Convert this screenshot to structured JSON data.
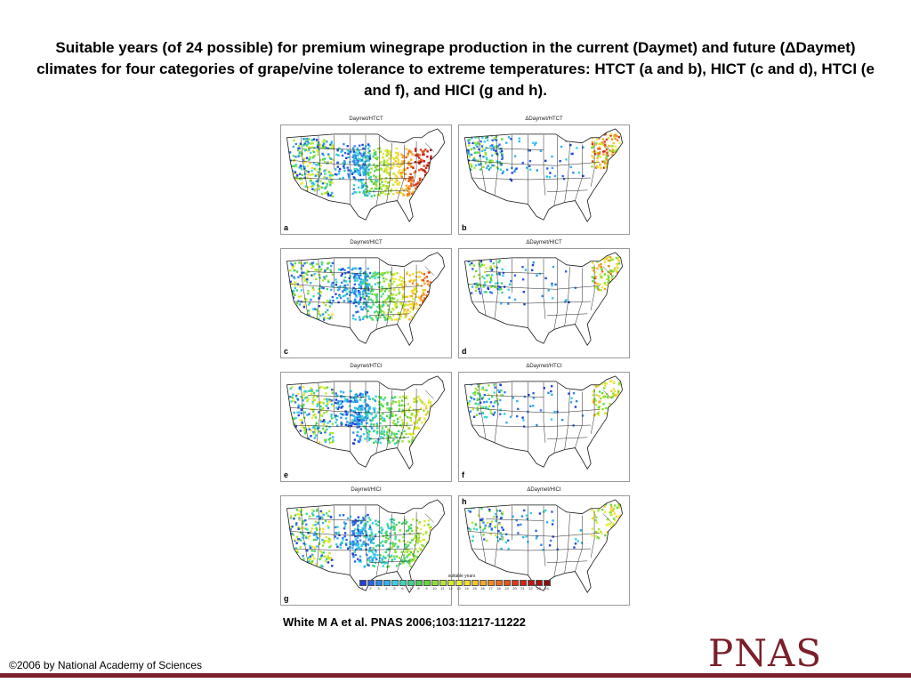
{
  "slide": {
    "title": "Suitable years (of 24 possible) for premium winegrape production in the current (Daymet) and future (ΔDaymet) climates for four categories of grape/vine tolerance to extreme temperatures: HTCT (a and b), HICT (c and d), HTCI (e and f), and HICI (g and h).",
    "citation": "White M A et al. PNAS 2006;103:11217-11222",
    "copyright": "©2006 by National Academy of Sciences",
    "logo_text": "PNAS",
    "brand_color": "#7b1f2a"
  },
  "panels": [
    {
      "letter": "a",
      "title": "Daymet/HTCT",
      "density": 0.9,
      "east_strength": 0.9,
      "future": false
    },
    {
      "letter": "b",
      "title": "ΔDaymet/HTCT",
      "density": 0.35,
      "east_strength": 0.8,
      "future": true
    },
    {
      "letter": "c",
      "title": "Daymet/HICT",
      "density": 0.8,
      "east_strength": 0.7,
      "future": false
    },
    {
      "letter": "d",
      "title": "ΔDaymet/HICT",
      "density": 0.25,
      "east_strength": 0.6,
      "future": true
    },
    {
      "letter": "e",
      "title": "Daymet/HTCI",
      "density": 0.75,
      "east_strength": 0.5,
      "future": false
    },
    {
      "letter": "f",
      "title": "ΔDaymet/HTCI",
      "density": 0.25,
      "east_strength": 0.45,
      "future": true
    },
    {
      "letter": "g",
      "title": "Daymet/HICI",
      "density": 0.7,
      "east_strength": 0.4,
      "future": false
    },
    {
      "letter": "h",
      "title": "ΔDaymet/HICI",
      "density": 0.22,
      "east_strength": 0.4,
      "future": true
    }
  ],
  "legend": {
    "title": "suitable years",
    "values": [
      "1",
      "2",
      "3",
      "4",
      "5",
      "6",
      "7",
      "8",
      "9",
      "10",
      "11",
      "12",
      "13",
      "14",
      "15",
      "16",
      "17",
      "18",
      "19",
      "20",
      "21",
      "22",
      "23",
      "24"
    ],
    "colors": [
      "#1f3fd6",
      "#2a62e6",
      "#2f86ee",
      "#2fb0f2",
      "#33d0e8",
      "#38d9b8",
      "#3fd48a",
      "#4ccf55",
      "#62d83a",
      "#8de033",
      "#b2e633",
      "#d2ea33",
      "#ecec33",
      "#f5dc2e",
      "#f6c22a",
      "#f6a526",
      "#f38822",
      "#ee6b1e",
      "#e6501b",
      "#dc3618",
      "#cf2317",
      "#bf1616",
      "#a81212",
      "#8a0f0f"
    ]
  }
}
